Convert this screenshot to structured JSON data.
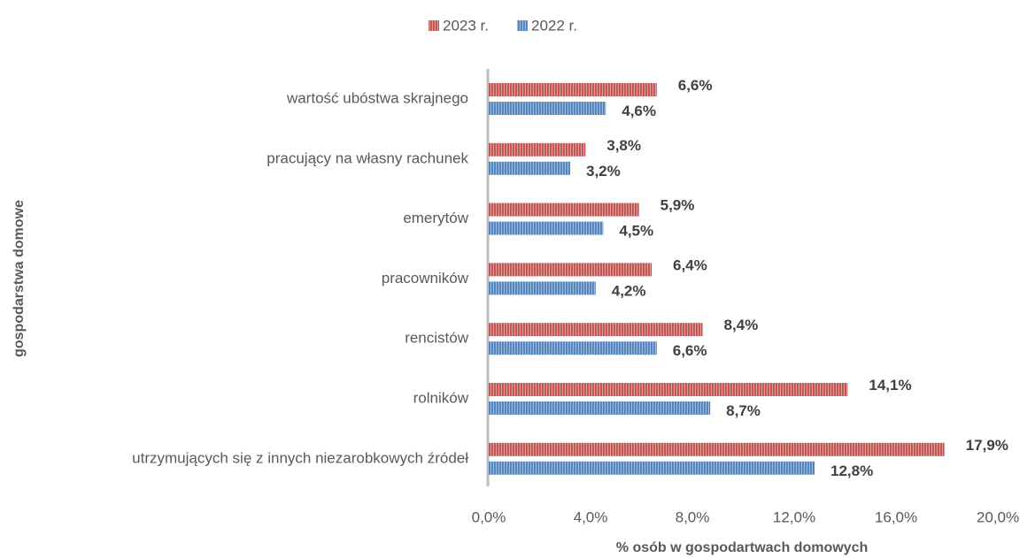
{
  "chart_data": {
    "type": "bar",
    "orientation": "horizontal",
    "categories": [
      "wartość ubóstwa skrajnego",
      "pracujący na własny rachunek",
      "emerytów",
      "pracowników",
      "rencistów",
      "rolników",
      "utrzymujących się z innych niezarobkowych źródeł"
    ],
    "series": [
      {
        "name": "2023 r.",
        "color": "#c0504d",
        "values": [
          6.6,
          3.8,
          5.9,
          6.4,
          8.4,
          14.1,
          17.9
        ],
        "value_labels": [
          "6,6%",
          "3,8%",
          "5,9%",
          "6,4%",
          "8,4%",
          "14,1%",
          "17,9%"
        ]
      },
      {
        "name": "2022 r.",
        "color": "#4f81bd",
        "values": [
          4.6,
          3.2,
          4.5,
          4.2,
          6.6,
          8.7,
          12.8
        ],
        "value_labels": [
          "4,6%",
          "3,2%",
          "4,5%",
          "4,2%",
          "6,6%",
          "8,7%",
          "12,8%"
        ]
      }
    ],
    "xlim": [
      0,
      20
    ],
    "xticks": [
      {
        "value": 0,
        "label": "0,0%"
      },
      {
        "value": 4,
        "label": "4,0%"
      },
      {
        "value": 8,
        "label": "8,0%"
      },
      {
        "value": 12,
        "label": "12,0%"
      },
      {
        "value": 16,
        "label": "16,0%"
      },
      {
        "value": 20,
        "label": "20,0%"
      }
    ],
    "x_label": "% osób w gospodartwach domowych",
    "y_label": "gospodarstwa domowe",
    "legend": "top",
    "grid": false
  }
}
